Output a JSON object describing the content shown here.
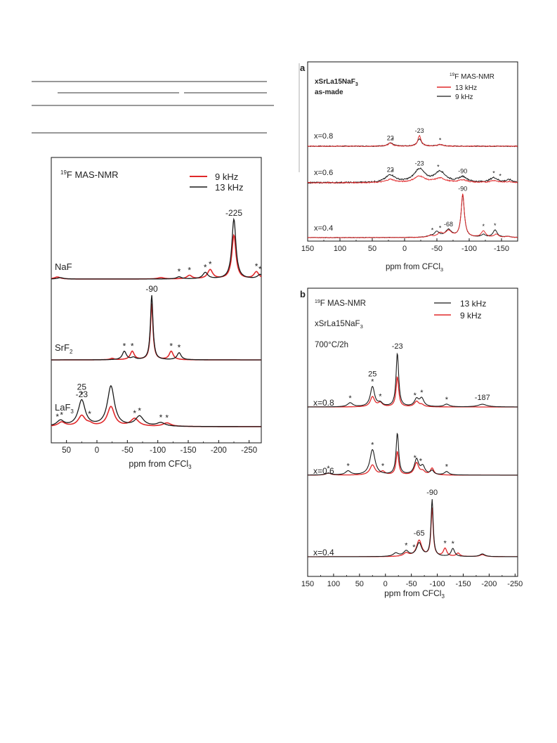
{
  "chart_data": [
    {
      "type": "line",
      "panel": "left",
      "title": "¹⁹F MAS-NMR",
      "xlabel": "ppm from CFCl₃",
      "xlim": [
        75,
        -270
      ],
      "xticks": [
        "50",
        "0",
        "-50",
        "-100",
        "-150",
        "-200",
        "-250"
      ],
      "xtick_values": [
        50,
        0,
        -50,
        -100,
        -150,
        -200,
        -250
      ],
      "legend": {
        "placement": "top-right",
        "entries": [
          "9 kHz",
          "13 kHz"
        ]
      },
      "series_colors": {
        "9 kHz": "#e0282a",
        "13 kHz": "#1a1a1a"
      },
      "traces": [
        {
          "name": "NaF",
          "sub": "",
          "main_label": "NaF",
          "peak_label": "-225",
          "peaks_13": [
            [
              -225,
              85,
              4
            ],
            [
              -178,
              9,
              5
            ],
            [
              -135,
              3,
              5
            ],
            [
              -268,
              6,
              5
            ],
            [
              60,
              2,
              6
            ]
          ],
          "peaks_9": [
            [
              -225,
              62,
              4
            ],
            [
              -186,
              13,
              5
            ],
            [
              -152,
              5,
              5
            ],
            [
              -262,
              10,
              5
            ],
            [
              -105,
              2,
              6
            ],
            [
              65,
              3,
              6
            ]
          ],
          "stars": [
            [
              -135,
              "k"
            ],
            [
              -152,
              "k"
            ],
            [
              -178,
              "k"
            ],
            [
              -186,
              "k"
            ],
            [
              -262,
              "k"
            ],
            [
              -268,
              "k"
            ]
          ]
        },
        {
          "name": "SrF2",
          "sub": "2",
          "main_label": "SrF",
          "peak_label": "-90",
          "peaks_13": [
            [
              -90,
              92,
              2.5
            ],
            [
              -45,
              12,
              4
            ],
            [
              -135,
              10,
              4
            ],
            [
              -60,
              3,
              4
            ]
          ],
          "peaks_9": [
            [
              -90,
              80,
              2.5
            ],
            [
              -58,
              12,
              4
            ],
            [
              -122,
              12,
              4
            ],
            [
              -25,
              2,
              4
            ]
          ],
          "stars": [
            [
              -45,
              "k"
            ],
            [
              -58,
              "k"
            ],
            [
              -122,
              "k"
            ],
            [
              -135,
              "k"
            ]
          ]
        },
        {
          "name": "LaF3",
          "sub": "3",
          "main_label": "LaF",
          "peak_label": "-23",
          "labels_extra": [
            [
              "25",
              25
            ]
          ],
          "peaks_13": [
            [
              25,
              37,
              7
            ],
            [
              -23,
              57,
              7
            ],
            [
              -70,
              14,
              8
            ],
            [
              -105,
              5,
              8
            ],
            [
              60,
              8,
              7
            ]
          ],
          "peaks_9": [
            [
              25,
              15,
              7
            ],
            [
              -23,
              28,
              7
            ],
            [
              -62,
              11,
              8
            ],
            [
              12,
              3,
              6
            ],
            [
              -115,
              5,
              8
            ],
            [
              58,
              6,
              7
            ]
          ],
          "stars": [
            [
              25,
              "k"
            ],
            [
              12,
              "k"
            ],
            [
              -62,
              "k"
            ],
            [
              -70,
              "k"
            ],
            [
              -105,
              "k"
            ],
            [
              -115,
              "k"
            ],
            [
              58,
              "k"
            ],
            [
              65,
              "k"
            ]
          ]
        }
      ]
    },
    {
      "type": "line",
      "panel": "a",
      "title": "¹⁹F MAS-NMR",
      "xlabel": "ppm from CFCl₃",
      "xlim": [
        150,
        -175
      ],
      "xticks": [
        "150",
        "100",
        "50",
        "0",
        "-50",
        "-100",
        "-150"
      ],
      "xtick_values": [
        150,
        100,
        50,
        0,
        -50,
        -100,
        -150
      ],
      "sample": "xSrLa15NaF₃",
      "condition": "as-made",
      "legend": {
        "placement": "top-right",
        "entries": [
          "13 kHz",
          "9 kHz"
        ]
      },
      "series_colors": {
        "13 kHz": "#e0282a",
        "9 kHz": "#1a1a1a"
      },
      "traces": [
        {
          "name": "x=0.8",
          "peak_labels": [
            [
              "22",
              22
            ],
            [
              "-23",
              -23
            ]
          ],
          "peaks_red": [
            [
              -23,
              20,
              3
            ],
            [
              22,
              6,
              4
            ],
            [
              -55,
              3,
              5
            ]
          ],
          "peaks_black": [
            [
              -23,
              14,
              4
            ],
            [
              22,
              6,
              5
            ],
            [
              -55,
              3,
              5
            ]
          ],
          "stars": [
            [
              -55,
              "k"
            ],
            [
              18,
              "k"
            ]
          ],
          "noise": 1
        },
        {
          "name": "x=0.6",
          "peak_labels": [
            [
              "22",
              22
            ],
            [
              "-23",
              -23
            ],
            [
              "-90",
              -90
            ]
          ],
          "peaks_red": [
            [
              22,
              6,
              8
            ],
            [
              -23,
              12,
              10
            ],
            [
              -55,
              8,
              10
            ],
            [
              -90,
              5,
              8
            ],
            [
              -138,
              4,
              7
            ],
            [
              -162,
              2,
              6
            ]
          ],
          "peaks_black": [
            [
              22,
              14,
              9
            ],
            [
              -23,
              25,
              10
            ],
            [
              -55,
              20,
              10
            ],
            [
              -90,
              10,
              8
            ],
            [
              -138,
              9,
              7
            ],
            [
              -162,
              5,
              6
            ]
          ],
          "stars": [
            [
              18,
              "k"
            ],
            [
              -52,
              "k"
            ],
            [
              -138,
              "k"
            ],
            [
              -148,
              "k"
            ]
          ],
          "noise": 1.5
        },
        {
          "name": "x=0.4",
          "peak_labels": [
            [
              "-90",
              -90
            ],
            [
              "-68",
              -68
            ]
          ],
          "peaks_red": [
            [
              -90,
              82,
              3
            ],
            [
              -68,
              12,
              6
            ],
            [
              -55,
              7,
              5
            ],
            [
              -122,
              12,
              4
            ],
            [
              -142,
              6,
              4
            ],
            [
              -40,
              3,
              5
            ],
            [
              -160,
              2,
              4
            ]
          ],
          "peaks_black": [
            [
              -90,
              80,
              3
            ],
            [
              -68,
              14,
              6
            ],
            [
              -50,
              10,
              5
            ],
            [
              -140,
              14,
              4
            ],
            [
              -122,
              5,
              4
            ],
            [
              -40,
              2,
              5
            ],
            [
              -160,
              2,
              4
            ]
          ],
          "stars": [
            [
              -43,
              "k"
            ],
            [
              -55,
              "k"
            ],
            [
              -122,
              "k"
            ],
            [
              -140,
              "k"
            ]
          ],
          "noise": 0.6
        }
      ]
    },
    {
      "type": "line",
      "panel": "b",
      "title": "¹⁹F MAS-NMR",
      "xlabel": "ppm from CFCl₃",
      "xlim": [
        150,
        -255
      ],
      "xticks": [
        "150",
        "100",
        "50",
        "0",
        "-50",
        "-100",
        "-150",
        "-200",
        "-250"
      ],
      "xtick_values": [
        150,
        100,
        50,
        0,
        -50,
        -100,
        -150,
        -200,
        -250
      ],
      "sample": "xSrLa15NaF₃",
      "condition": "700°C/2h",
      "legend": {
        "placement": "top-right",
        "entries": [
          "13 kHz",
          "9 kHz"
        ]
      },
      "series_colors": {
        "13 kHz": "#1a1a1a",
        "9 kHz": "#e0282a"
      },
      "traces": [
        {
          "name": "x=0.8",
          "peak_labels": [
            [
              "25",
              25
            ],
            [
              "-23",
              -23
            ],
            [
              "-187",
              -187
            ]
          ],
          "peaks_black": [
            [
              -23,
              80,
              3
            ],
            [
              25,
              30,
              5
            ],
            [
              -60,
              11,
              5
            ],
            [
              -70,
              12,
              5
            ],
            [
              -118,
              4,
              6
            ],
            [
              68,
              6,
              6
            ],
            [
              -187,
              4,
              10
            ],
            [
              10,
              5,
              5
            ]
          ],
          "peaks_red": [
            [
              -23,
              45,
              3
            ],
            [
              25,
              15,
              5
            ],
            [
              -60,
              8,
              5
            ],
            [
              10,
              6,
              5
            ],
            [
              -70,
              3,
              5
            ]
          ],
          "stars": [
            [
              25,
              "k"
            ],
            [
              10,
              "k"
            ],
            [
              -57,
              "k"
            ],
            [
              -70,
              "k"
            ],
            [
              -118,
              "k"
            ],
            [
              68,
              "k"
            ]
          ]
        },
        {
          "name": "x=0.6",
          "peak_labels": [],
          "peaks_black": [
            [
              -23,
              62,
              3
            ],
            [
              25,
              38,
              6
            ],
            [
              -60,
              23,
              5
            ],
            [
              -72,
              12,
              5
            ],
            [
              -90,
              6,
              4
            ],
            [
              -118,
              5,
              5
            ],
            [
              72,
              6,
              6
            ],
            [
              110,
              3,
              6
            ]
          ],
          "peaks_red": [
            [
              -23,
              35,
              3
            ],
            [
              25,
              15,
              6
            ],
            [
              -60,
              18,
              5
            ],
            [
              -72,
              5,
              5
            ],
            [
              -90,
              10,
              4
            ],
            [
              5,
              5,
              5
            ],
            [
              110,
              3,
              6
            ]
          ],
          "stars": [
            [
              25,
              "k"
            ],
            [
              5,
              "k"
            ],
            [
              -57,
              "k"
            ],
            [
              -68,
              "k"
            ],
            [
              -118,
              "k"
            ],
            [
              72,
              "k"
            ],
            [
              110,
              "k"
            ]
          ]
        },
        {
          "name": "x=0.4",
          "peak_labels": [
            [
              "-90",
              -90
            ],
            [
              "-65",
              -65
            ]
          ],
          "peaks_black": [
            [
              -90,
              85,
              2.5
            ],
            [
              -65,
              20,
              6
            ],
            [
              -40,
              8,
              6
            ],
            [
              -130,
              12,
              4
            ],
            [
              -20,
              5,
              6
            ],
            [
              -187,
              4,
              6
            ]
          ],
          "peaks_red": [
            [
              -90,
              72,
              2.5
            ],
            [
              -65,
              24,
              6
            ],
            [
              -115,
              12,
              4
            ],
            [
              -40,
              5,
              6
            ],
            [
              -140,
              5,
              4
            ],
            [
              -187,
              3,
              6
            ]
          ],
          "stars": [
            [
              -40,
              "k"
            ],
            [
              -55,
              "k"
            ],
            [
              -115,
              "k"
            ],
            [
              -130,
              "k"
            ]
          ]
        }
      ]
    }
  ],
  "panels": {
    "a": {
      "tag": "a"
    },
    "b": {
      "tag": "b"
    }
  }
}
